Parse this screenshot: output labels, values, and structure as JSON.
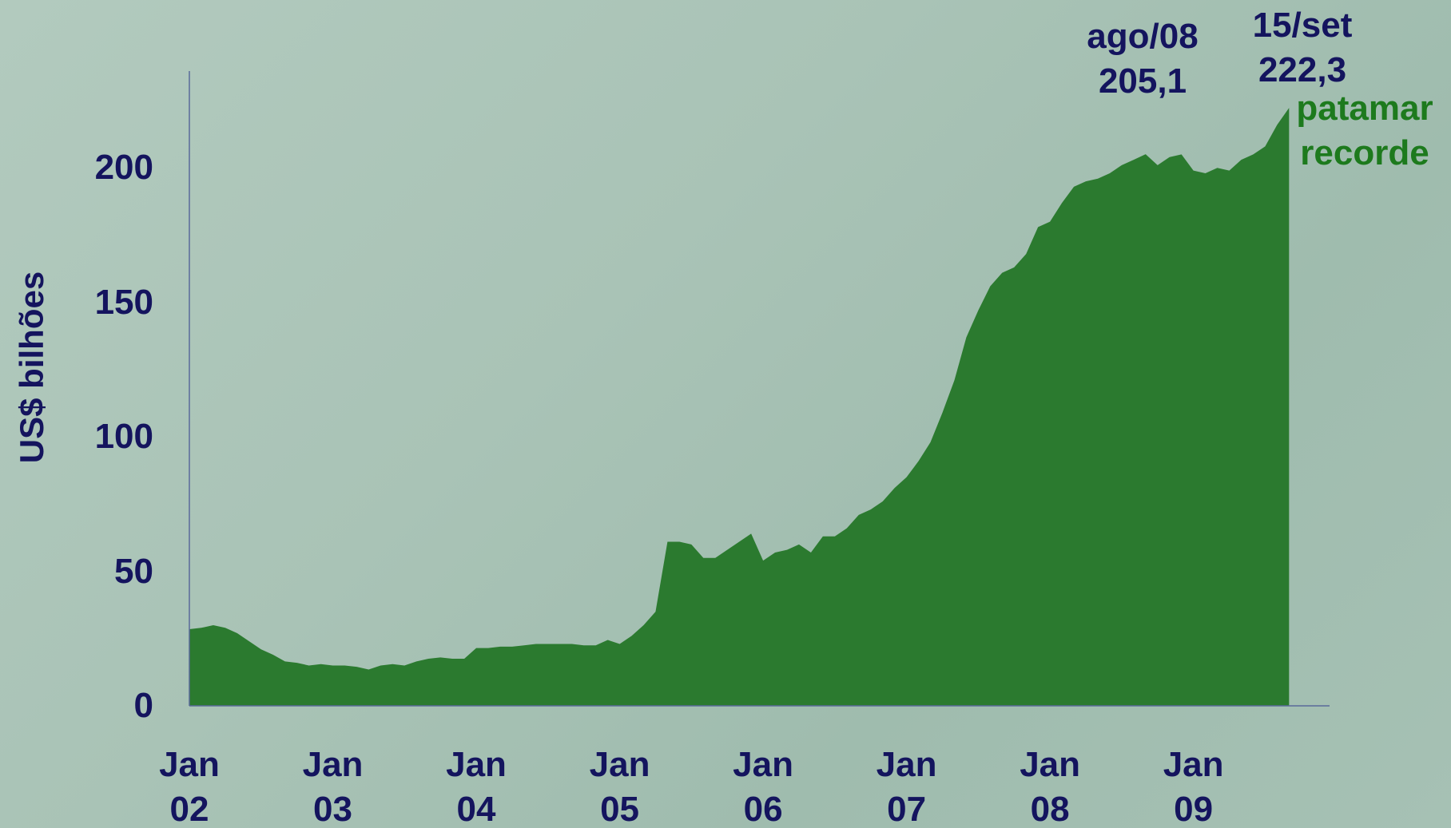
{
  "chart_data": {
    "type": "area",
    "ylabel": "US$ bilhões",
    "categories": [
      "Jan\n02",
      null,
      null,
      null,
      null,
      null,
      null,
      null,
      null,
      null,
      null,
      null,
      "Jan\n03",
      null,
      null,
      null,
      null,
      null,
      null,
      null,
      null,
      null,
      null,
      null,
      "Jan\n04",
      null,
      null,
      null,
      null,
      null,
      null,
      null,
      null,
      null,
      null,
      null,
      "Jan\n05",
      null,
      null,
      null,
      null,
      null,
      null,
      null,
      null,
      null,
      null,
      null,
      "Jan\n06",
      null,
      null,
      null,
      null,
      null,
      null,
      null,
      null,
      null,
      null,
      null,
      "Jan\n07",
      null,
      null,
      null,
      null,
      null,
      null,
      null,
      null,
      null,
      null,
      null,
      "Jan\n08",
      null,
      null,
      null,
      null,
      null,
      null,
      null,
      null,
      null,
      null,
      null,
      "Jan\n09",
      null,
      null,
      null,
      null,
      null,
      null,
      null,
      null
    ],
    "values": [
      28.5,
      29,
      30,
      29,
      27,
      24,
      21,
      19,
      16.5,
      16,
      15,
      15.5,
      15,
      15,
      14.5,
      13.5,
      15,
      15.5,
      15,
      16.5,
      17.5,
      18,
      17.5,
      17.5,
      21.5,
      21.5,
      22,
      22,
      22.5,
      23,
      23,
      23,
      23,
      22.5,
      22.5,
      24.5,
      23,
      26,
      30,
      35,
      61,
      61,
      60,
      55,
      55,
      58,
      61,
      64,
      54,
      57,
      58,
      60,
      57,
      63,
      63,
      66,
      71,
      73,
      76,
      81,
      85,
      91,
      98,
      109,
      121,
      137,
      147,
      156,
      161,
      163,
      168,
      178,
      180,
      187,
      193,
      195,
      196,
      198,
      201,
      203,
      205.1,
      201,
      204,
      205,
      199,
      198,
      200,
      199,
      203,
      205,
      208,
      216,
      222.3
    ],
    "color": "#2b7a2f",
    "ylim": [
      0,
      236
    ],
    "yticks": [
      0,
      50,
      100,
      150,
      200
    ],
    "annotations": [
      {
        "text": "ago/08\n205,1",
        "color": "#14145e"
      },
      {
        "text": "15/set\n222,3",
        "color": "#14145e"
      },
      {
        "text": "patamar\nrecorde",
        "color": "#1d7a1d"
      }
    ]
  }
}
